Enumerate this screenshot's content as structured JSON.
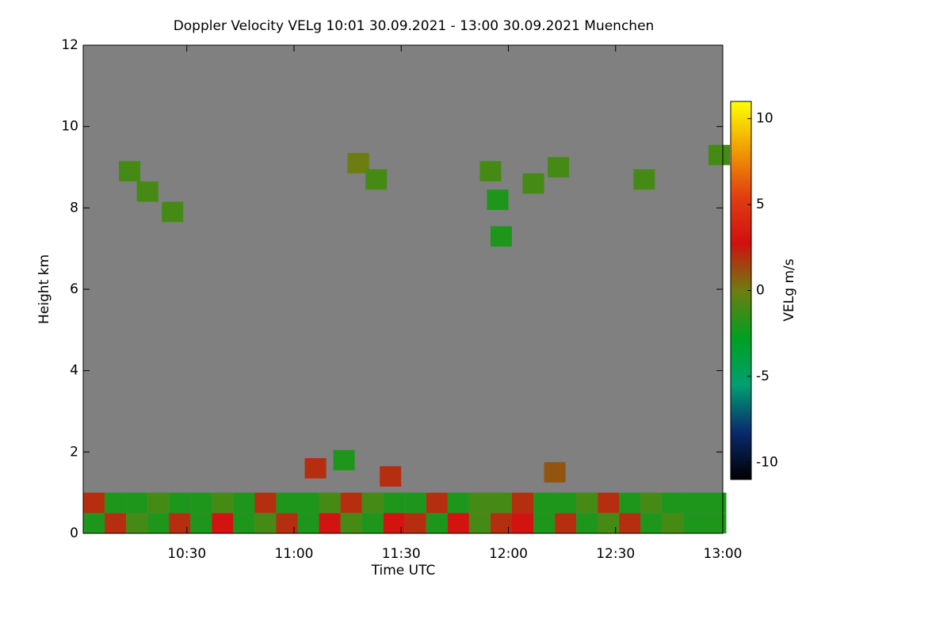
{
  "chart_data": {
    "type": "heatmap",
    "title": "Doppler Velocity VELg   10:01 30.09.2021 - 13:00 30.09.2021 Muenchen",
    "xlabel": "Time UTC",
    "ylabel": "Height km",
    "colorbar_label": "VELg m/s",
    "xlim": [
      601,
      780
    ],
    "xticks": [
      {
        "value": 630,
        "label": "10:30"
      },
      {
        "value": 660,
        "label": "11:00"
      },
      {
        "value": 690,
        "label": "11:30"
      },
      {
        "value": 720,
        "label": "12:00"
      },
      {
        "value": 750,
        "label": "12:30"
      },
      {
        "value": 780,
        "label": "13:00"
      }
    ],
    "ylim": [
      0,
      12
    ],
    "yticks": [
      0,
      2,
      4,
      6,
      8,
      10,
      12
    ],
    "zlim": [
      -11,
      11
    ],
    "zticks": [
      -10,
      -5,
      0,
      5,
      10
    ],
    "background_color": "#808080",
    "colormap": [
      "#000000",
      "#0a2a6e",
      "#00a070",
      "#00a020",
      "#6e7d10",
      "#d01010",
      "#e04010",
      "#f0a000",
      "#ffff00"
    ],
    "echoes": {
      "time": [
        604,
        610,
        616,
        622,
        628,
        634,
        640,
        646,
        652,
        658,
        664,
        670,
        676,
        682,
        688,
        694,
        700,
        706,
        712,
        718,
        724,
        730,
        736,
        742,
        748,
        754,
        760,
        766,
        772,
        778,
        604,
        610,
        616,
        622,
        628,
        634,
        640,
        646,
        652,
        658,
        664,
        670,
        676,
        682,
        688,
        694,
        700,
        706,
        712,
        718,
        724,
        730,
        736,
        742,
        748,
        754,
        760,
        766,
        772,
        778,
        614,
        619,
        626,
        678,
        683,
        715,
        717,
        718,
        727,
        734,
        758,
        779,
        666,
        674,
        687,
        733
      ],
      "height": [
        0.25,
        0.25,
        0.25,
        0.25,
        0.25,
        0.25,
        0.25,
        0.25,
        0.25,
        0.25,
        0.25,
        0.25,
        0.25,
        0.25,
        0.25,
        0.25,
        0.25,
        0.25,
        0.25,
        0.25,
        0.25,
        0.25,
        0.25,
        0.25,
        0.25,
        0.25,
        0.25,
        0.25,
        0.25,
        0.25,
        0.75,
        0.75,
        0.75,
        0.75,
        0.75,
        0.75,
        0.75,
        0.75,
        0.75,
        0.75,
        0.75,
        0.75,
        0.75,
        0.75,
        0.75,
        0.75,
        0.75,
        0.75,
        0.75,
        0.75,
        0.75,
        0.75,
        0.75,
        0.75,
        0.75,
        0.75,
        0.75,
        0.75,
        0.75,
        0.75,
        8.9,
        8.4,
        7.9,
        9.1,
        8.7,
        8.9,
        8.2,
        7.3,
        8.6,
        9.0,
        8.7,
        9.3,
        1.6,
        1.8,
        1.4,
        1.5
      ],
      "values": [
        -2,
        2,
        -1,
        -2,
        2,
        -2,
        3,
        -2,
        -1,
        2,
        -2,
        3,
        -1,
        -2,
        3,
        2,
        -2,
        3,
        -1,
        2,
        3,
        -2,
        2,
        -2,
        -1,
        2,
        -2,
        -1,
        -2,
        -2,
        2,
        -2,
        -2,
        -1,
        -2,
        -2,
        -1,
        -2,
        2,
        -2,
        -2,
        -1,
        2,
        -1,
        -2,
        -2,
        2,
        -2,
        -1,
        -1,
        2,
        -2,
        -2,
        -1,
        2,
        -2,
        -1,
        -2,
        -2,
        -2,
        -1,
        -1,
        -1,
        0,
        -1,
        -1,
        -2,
        -2,
        -1,
        -1,
        -1,
        -1,
        2,
        -2,
        2,
        1
      ]
    }
  }
}
